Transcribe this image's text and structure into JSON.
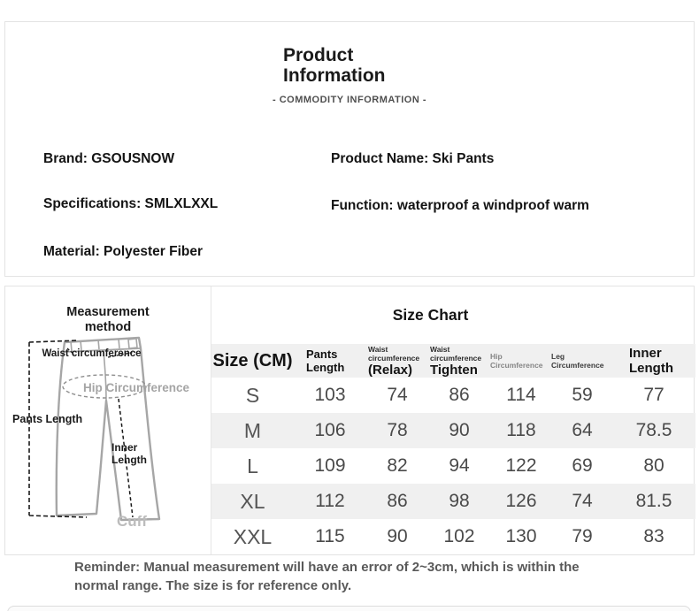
{
  "header": {
    "title": "Product Information",
    "subtitle": "- COMMODITY INFORMATION -"
  },
  "product_info": {
    "brand": "Brand: GSOUSNOW",
    "product_name": "Product Name: Ski Pants",
    "specifications": "Specifications: SMLXLXXL",
    "function": "Function: waterproof a windproof warm",
    "material": "Material: Polyester Fiber"
  },
  "measurement": {
    "title": "Measurement method",
    "labels": {
      "waist": "Waist circumference",
      "hip": "Hip Circumference",
      "pants_length": "Pants Length",
      "inner_length": "Inner Length",
      "cuff": "Cuff"
    }
  },
  "size_chart": {
    "title": "Size Chart",
    "columns": [
      {
        "label": "Size (CM)"
      },
      {
        "label": "Pants Length"
      },
      {
        "sub": "Waist circumference",
        "label": "(Relax)"
      },
      {
        "sub": "Waist circumference",
        "label": "Tighten"
      },
      {
        "sub": "Hip Circumference"
      },
      {
        "sub": "Leg Circumference"
      },
      {
        "label": "Inner Length"
      }
    ],
    "rows": [
      {
        "size": "S",
        "values": [
          "103",
          "74",
          "86",
          "114",
          "59",
          "77"
        ]
      },
      {
        "size": "M",
        "values": [
          "106",
          "78",
          "90",
          "118",
          "64",
          "78.5"
        ]
      },
      {
        "size": "L",
        "values": [
          "109",
          "82",
          "94",
          "122",
          "69",
          "80"
        ]
      },
      {
        "size": "XL",
        "values": [
          "112",
          "86",
          "98",
          "126",
          "74",
          "81.5"
        ]
      },
      {
        "size": "XXL",
        "values": [
          "115",
          "90",
          "102",
          "130",
          "79",
          "83"
        ]
      }
    ]
  },
  "reminder": "Reminder: Manual measurement will have an error of 2~3cm, which is within the normal range. The size is for reference only.",
  "colors": {
    "border": "#e3e3e3",
    "row_alt_bg": "#f0f0f0",
    "muted_text": "#595959",
    "diagram_gray": "#a6a6a6"
  }
}
